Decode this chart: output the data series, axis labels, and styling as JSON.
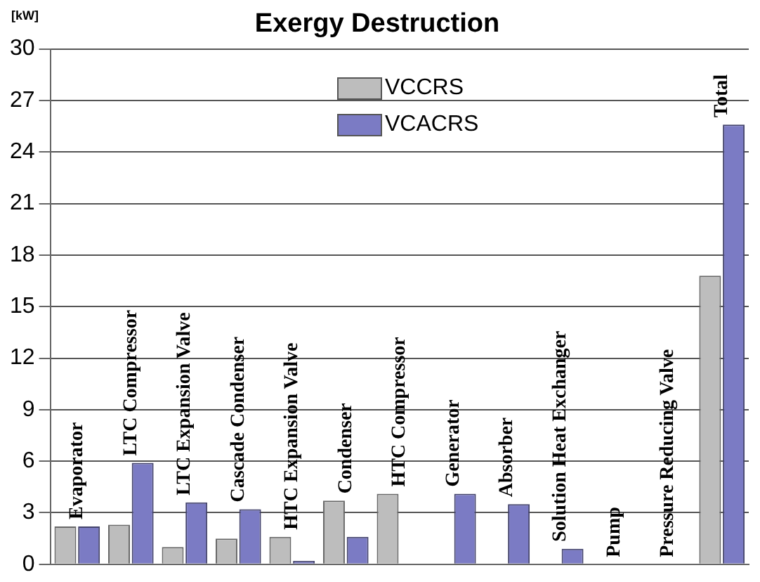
{
  "chart_data": {
    "type": "bar",
    "title": "Exergy Destruction",
    "ylabel": "[kW]",
    "categories": [
      "Evaporator",
      "LTC Compressor",
      "LTC Expansion Valve",
      "Cascade Condenser",
      "HTC Expansion Valve",
      "Condenser",
      "HTC Compressor",
      "Generator",
      "Absorber",
      "Solution Heat Exchanger",
      "Pump",
      "Pressure Reducing Valve",
      "Total"
    ],
    "series": [
      {
        "name": "VCCRS",
        "color": "#bdbdbd",
        "values": [
          2.2,
          2.3,
          1.0,
          1.5,
          1.6,
          3.7,
          4.1,
          0,
          0,
          0,
          0,
          0,
          16.8
        ]
      },
      {
        "name": "VCACRS",
        "color": "#7b7bc4",
        "values": [
          2.2,
          5.9,
          3.6,
          3.2,
          0.2,
          1.6,
          0,
          4.1,
          3.5,
          0.9,
          0,
          0,
          25.6
        ]
      }
    ],
    "ylim": [
      0,
      30
    ],
    "yticks": [
      0,
      3,
      6,
      9,
      12,
      15,
      18,
      21,
      24,
      27,
      30
    ],
    "grid": "y",
    "legend": "top",
    "tick_labels": "y"
  }
}
